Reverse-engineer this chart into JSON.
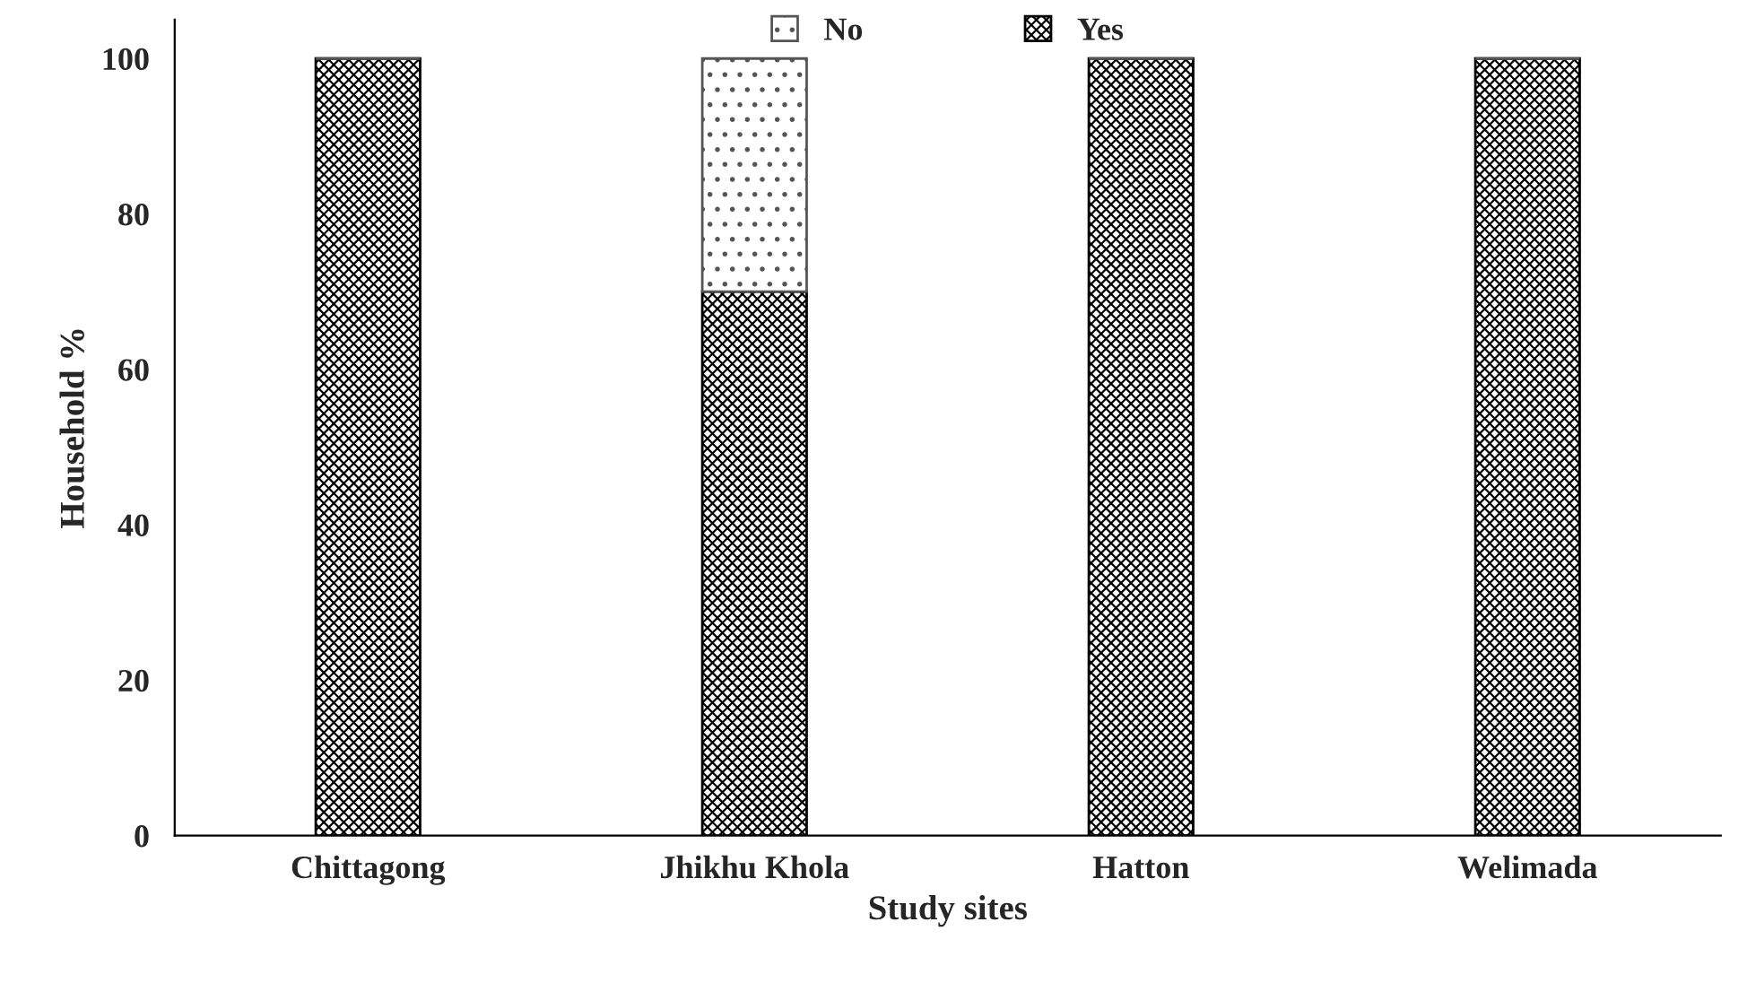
{
  "chart_data": {
    "type": "bar",
    "stacked": true,
    "xlabel": "Study sites",
    "ylabel": "Household %",
    "categories": [
      "Chittagong",
      "Jhikhu Khola",
      "Hatton",
      "Welimada"
    ],
    "series": [
      {
        "name": "Yes",
        "color": "#000000",
        "values": [
          100,
          70,
          100,
          100
        ]
      },
      {
        "name": "No",
        "color": "#555555",
        "values": [
          0,
          30,
          0,
          0
        ]
      }
    ],
    "ylim": [
      0,
      105
    ],
    "yticks": [
      0,
      20,
      40,
      60,
      80,
      100
    ],
    "grid": false,
    "legend": "top"
  }
}
